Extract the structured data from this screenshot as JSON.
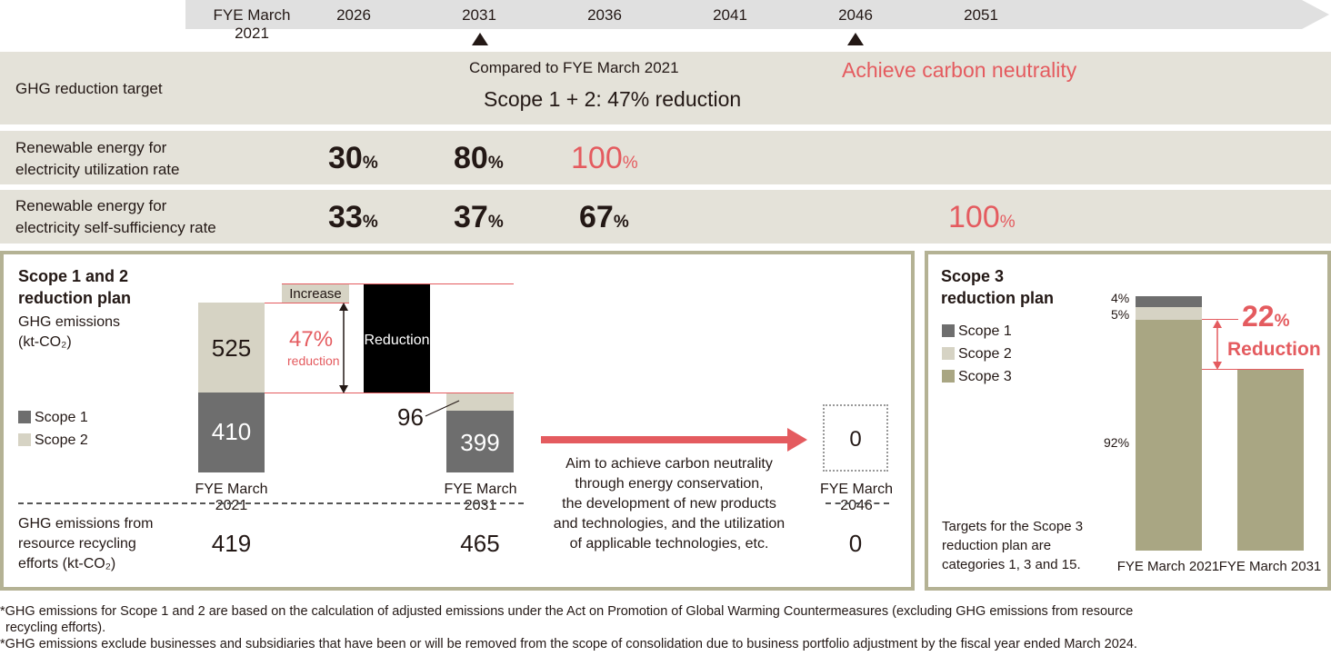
{
  "timeline": {
    "years": [
      "FYE March 2021",
      "2026",
      "2031",
      "2036",
      "2041",
      "2046",
      "2051"
    ]
  },
  "ghg_target": {
    "label": "GHG reduction target",
    "compared": "Compared to FYE March 2021",
    "scope12": "Scope 1 + 2: 47% reduction",
    "neutral": "Achieve carbon neutrality"
  },
  "renewable_util": {
    "label_line1": "Renewable energy for",
    "label_line2": "electricity utilization rate",
    "values": [
      {
        "num": "30",
        "unit": "%"
      },
      {
        "num": "80",
        "unit": "%"
      },
      {
        "num": "100",
        "unit": "%"
      }
    ]
  },
  "renewable_self": {
    "label_line1": "Renewable energy for",
    "label_line2": "electricity self-sufficiency rate",
    "values": [
      {
        "num": "33",
        "unit": "%"
      },
      {
        "num": "37",
        "unit": "%"
      },
      {
        "num": "67",
        "unit": "%"
      },
      {
        "num": "100",
        "unit": "%"
      }
    ]
  },
  "scope12_plan": {
    "title_line1": "Scope 1 and 2",
    "title_line2": "reduction plan",
    "unit_line1": "GHG emissions",
    "unit_line2": "(kt-CO₂)",
    "legend": [
      {
        "label": "Scope 1",
        "color": "#6e6e6e"
      },
      {
        "label": "Scope 2",
        "color": "#d6d3c4"
      }
    ],
    "bar2021": {
      "scope1": "410",
      "scope2": "525",
      "label": "FYE March 2021"
    },
    "increase": "Increase",
    "reduction_pct": "47%",
    "reduction_word": "reduction",
    "reduction_box": "Reduction",
    "bar2031": {
      "scope1": "399",
      "scope2": "96",
      "label": "FYE March 2031"
    },
    "arrow_text": [
      "Aim to achieve carbon neutrality",
      "through energy conservation,",
      "the development of new products",
      "and technologies, and the utilization",
      "of applicable technologies, etc."
    ],
    "target2046": {
      "value": "0",
      "label": "FYE March 2046"
    },
    "recycling_label": [
      "GHG emissions from",
      "resource recycling",
      "efforts (kt-CO₂)"
    ],
    "recycling_values": [
      "419",
      "465",
      "0"
    ]
  },
  "scope3_plan": {
    "title_line1": "Scope 3",
    "title_line2": "reduction plan",
    "legend": [
      {
        "label": "Scope 1",
        "color": "#6e6e6e"
      },
      {
        "label": "Scope 2",
        "color": "#d6d3c4"
      },
      {
        "label": "Scope 3",
        "color": "#a9a683"
      }
    ],
    "pct_scope1": "4%",
    "pct_scope2": "5%",
    "pct_scope3": "92%",
    "reduction_pct": "22",
    "reduction_unit": "%",
    "reduction_word": "Reduction",
    "note": [
      "Targets for the Scope 3",
      "reduction plan are",
      "categories 1, 3 and 15."
    ],
    "x_labels": [
      "FYE March 2021",
      "FYE March 2031"
    ]
  },
  "footnotes": [
    "*GHG emissions for Scope 1 and 2 are based on the calculation of adjusted emissions under the Act on Promotion of Global Warming Countermeasures (excluding GHG emissions from resource",
    "recycling efforts).",
    "*GHG emissions exclude businesses and subsidiaries that have been or will be removed from the scope of consolidation due to business portfolio adjustment by the fiscal year ended March 2024."
  ]
}
